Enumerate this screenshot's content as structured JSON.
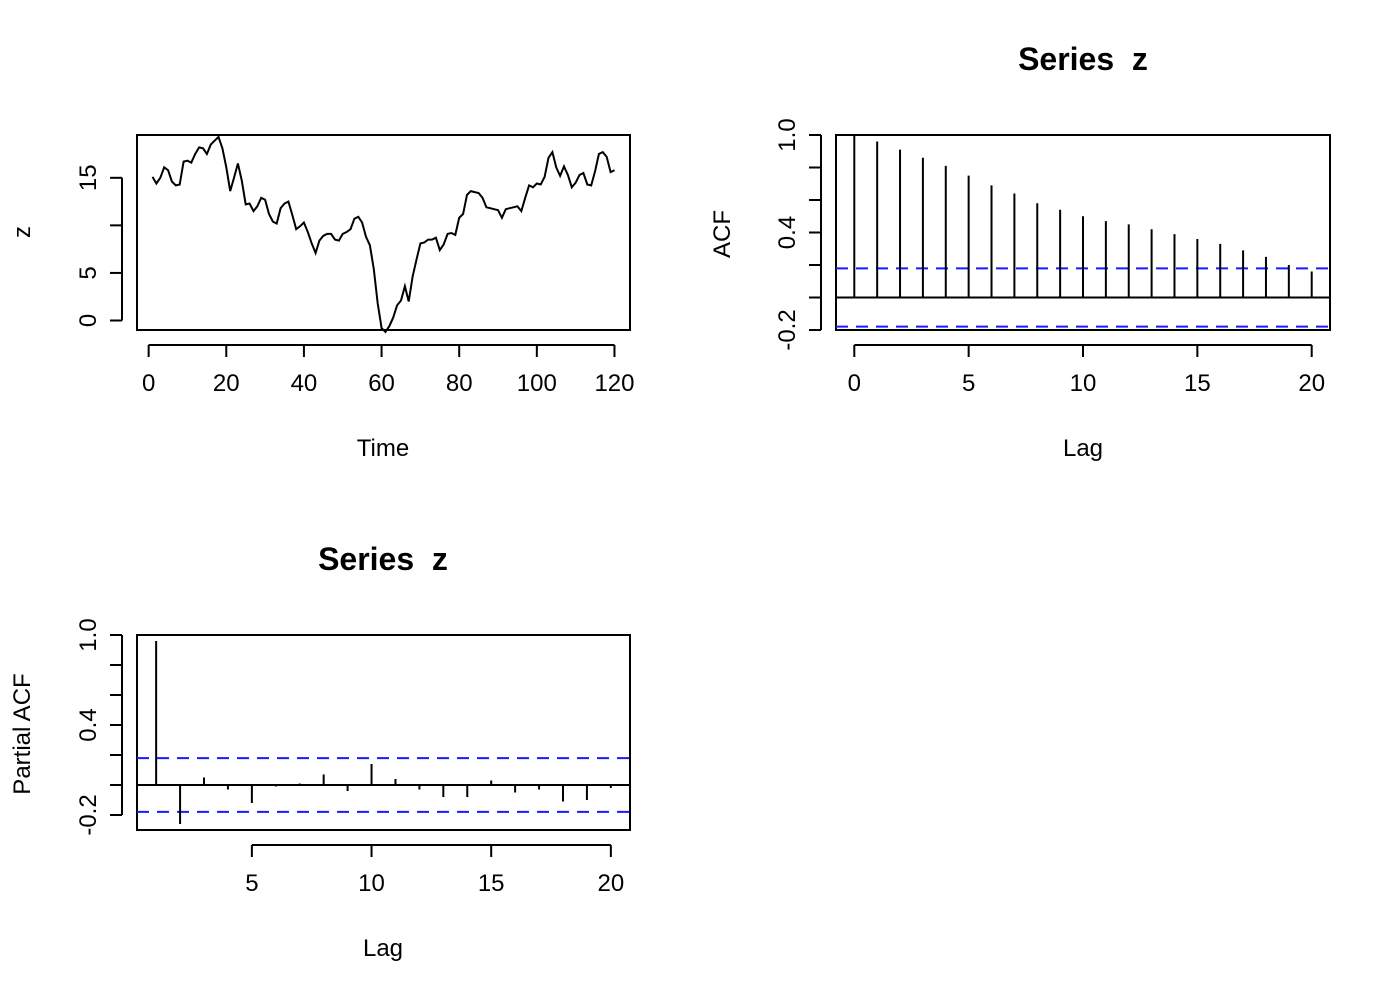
{
  "chart_data": [
    {
      "type": "line",
      "title": "",
      "xlabel": "Time",
      "ylabel": "z",
      "xlim": [
        -3,
        124
      ],
      "ylim": [
        -1,
        19.5
      ],
      "xticks": [
        "0",
        "20",
        "40",
        "60",
        "80",
        "100",
        "120"
      ],
      "yticks": [
        "0",
        "5",
        "15"
      ],
      "x": [
        1,
        2,
        3,
        4,
        5,
        6,
        7,
        8,
        9,
        10,
        11,
        12,
        13,
        14,
        15,
        16,
        17,
        18,
        19,
        20,
        21,
        22,
        23,
        24,
        25,
        26,
        27,
        28,
        29,
        30,
        31,
        32,
        33,
        34,
        35,
        36,
        37,
        38,
        39,
        40,
        41,
        42,
        43,
        44,
        45,
        46,
        47,
        48,
        49,
        50,
        51,
        52,
        53,
        54,
        55,
        56,
        57,
        58,
        59,
        60,
        61,
        62,
        63,
        64,
        65,
        66,
        67,
        68,
        69,
        70,
        71,
        72,
        73,
        74,
        75,
        76,
        77,
        78,
        79,
        80,
        81,
        82,
        83,
        84,
        85,
        86,
        87,
        88,
        89,
        90,
        91,
        92,
        93,
        94,
        95,
        96,
        97,
        98,
        99,
        100,
        101,
        102,
        103,
        104,
        105,
        106,
        107,
        108,
        109,
        110,
        111,
        112,
        113,
        114,
        115,
        116,
        117,
        118,
        119,
        120
      ],
      "y": [
        15.1,
        14.4,
        15,
        16.1,
        15.8,
        14.6,
        14.2,
        14.3,
        16.7,
        16.8,
        16.6,
        17.5,
        18.2,
        18.1,
        17.5,
        18.5,
        18.9,
        19.3,
        18.1,
        16.1,
        13.6,
        15,
        16.5,
        14.7,
        12.2,
        12.3,
        11.5,
        12,
        12.9,
        12.7,
        11.2,
        10.4,
        10.2,
        11.8,
        12.3,
        12.5,
        11.1,
        9.6,
        9.9,
        10.3,
        9.3,
        8.1,
        7.1,
        8.4,
        8.9,
        9.1,
        9.1,
        8.5,
        8.4,
        9.1,
        9.3,
        9.6,
        10.7,
        10.9,
        10.3,
        8.8,
        7.9,
        5.4,
        1.8,
        -0.8,
        -1.2,
        -0.6,
        0.3,
        1.6,
        2.1,
        3.6,
        2,
        4.6,
        6.4,
        8.1,
        8.2,
        8.5,
        8.5,
        8.7,
        7.4,
        8,
        9.1,
        9.2,
        9,
        10.8,
        11.2,
        13.2,
        13.6,
        13.5,
        13.4,
        12.9,
        11.9,
        11.8,
        11.7,
        11.6,
        10.8,
        11.7,
        11.8,
        11.9,
        12,
        11.5,
        12.9,
        14.2,
        14,
        14.4,
        14.3,
        15.1,
        17.1,
        17.7,
        16.1,
        15.2,
        16.2,
        15.3,
        14,
        14.5,
        15.3,
        15.5,
        14.3,
        14.2,
        15.7,
        17.5,
        17.7,
        17.2,
        15.6,
        15.8
      ]
    },
    {
      "type": "bar",
      "title": "Series  z",
      "xlabel": "Lag",
      "ylabel": "ACF",
      "xlim": [
        -0.8,
        20.8
      ],
      "ylim": [
        -0.2,
        1.0
      ],
      "xticks": [
        "0",
        "5",
        "10",
        "15",
        "20"
      ],
      "yticks": [
        "-0.2",
        "0.4",
        "1.0"
      ],
      "conf_limit": 0.179,
      "lags": [
        0,
        1,
        2,
        3,
        4,
        5,
        6,
        7,
        8,
        9,
        10,
        11,
        12,
        13,
        14,
        15,
        16,
        17,
        18,
        19,
        20
      ],
      "values": [
        1.0,
        0.96,
        0.91,
        0.86,
        0.81,
        0.75,
        0.69,
        0.64,
        0.58,
        0.54,
        0.5,
        0.47,
        0.45,
        0.42,
        0.39,
        0.36,
        0.33,
        0.29,
        0.25,
        0.2,
        0.16
      ]
    },
    {
      "type": "bar",
      "title": "Series  z",
      "xlabel": "Lag",
      "ylabel": "Partial ACF",
      "xlim": [
        0.2,
        20.8
      ],
      "ylim": [
        -0.3,
        1.0
      ],
      "xticks": [
        "5",
        "10",
        "15",
        "20"
      ],
      "yticks": [
        "-0.2",
        "0.4",
        "1.0"
      ],
      "conf_limit": 0.179,
      "lags": [
        1,
        2,
        3,
        4,
        5,
        6,
        7,
        8,
        9,
        10,
        11,
        12,
        13,
        14,
        15,
        16,
        17,
        18,
        19,
        20
      ],
      "values": [
        0.96,
        -0.26,
        0.05,
        -0.03,
        -0.12,
        -0.01,
        0.01,
        0.07,
        -0.04,
        0.14,
        0.04,
        -0.03,
        -0.08,
        -0.08,
        0.03,
        -0.05,
        -0.03,
        -0.11,
        -0.1,
        -0.02
      ]
    }
  ]
}
